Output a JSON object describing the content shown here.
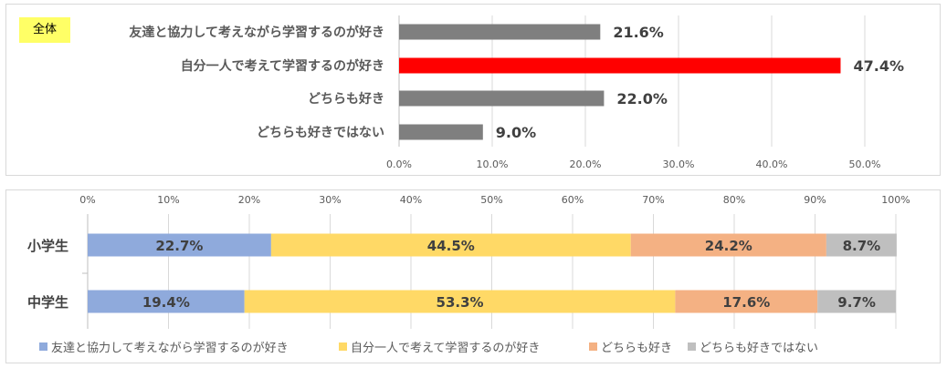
{
  "badge": "全体",
  "colors": {
    "bar_default": "#7f7f7f",
    "bar_highlight": "#ff0000",
    "series": [
      "#8faadc",
      "#ffd966",
      "#f4b183",
      "#bfbfbf"
    ]
  },
  "chart_data": [
    {
      "type": "bar",
      "orientation": "horizontal",
      "categories": [
        "友達と協力して考えながら学習するのが好き",
        "自分一人で考えて学習するのが好き",
        "どちらも好き",
        "どちらも好きではない"
      ],
      "values": [
        21.6,
        47.4,
        22.0,
        9.0
      ],
      "value_labels": [
        "21.6%",
        "47.4%",
        "22.0%",
        "9.0%"
      ],
      "highlight_index": 1,
      "xlim": [
        0,
        50
      ],
      "xticks": [
        "0.0%",
        "10.0%",
        "20.0%",
        "30.0%",
        "40.0%",
        "50.0%"
      ],
      "grid": true
    },
    {
      "type": "bar",
      "orientation": "horizontal",
      "stacked": true,
      "categories": [
        "小学生",
        "中学生"
      ],
      "xlim": [
        0,
        100
      ],
      "xticks": [
        "0%",
        "10%",
        "20%",
        "30%",
        "40%",
        "50%",
        "60%",
        "70%",
        "80%",
        "90%",
        "100%"
      ],
      "legend_position": "bottom",
      "series": [
        {
          "name": "友達と協力して考えながら学習するのが好き",
          "values": [
            22.7,
            19.4
          ],
          "labels": [
            "22.7%",
            "19.4%"
          ]
        },
        {
          "name": "自分一人で考えて学習するのが好き",
          "values": [
            44.5,
            53.3
          ],
          "labels": [
            "44.5%",
            "53.3%"
          ]
        },
        {
          "name": "どちらも好き",
          "values": [
            24.2,
            17.6
          ],
          "labels": [
            "24.2%",
            "17.6%"
          ]
        },
        {
          "name": "どちらも好きではない",
          "values": [
            8.7,
            9.7
          ],
          "labels": [
            "8.7%",
            "9.7%"
          ]
        }
      ]
    }
  ]
}
